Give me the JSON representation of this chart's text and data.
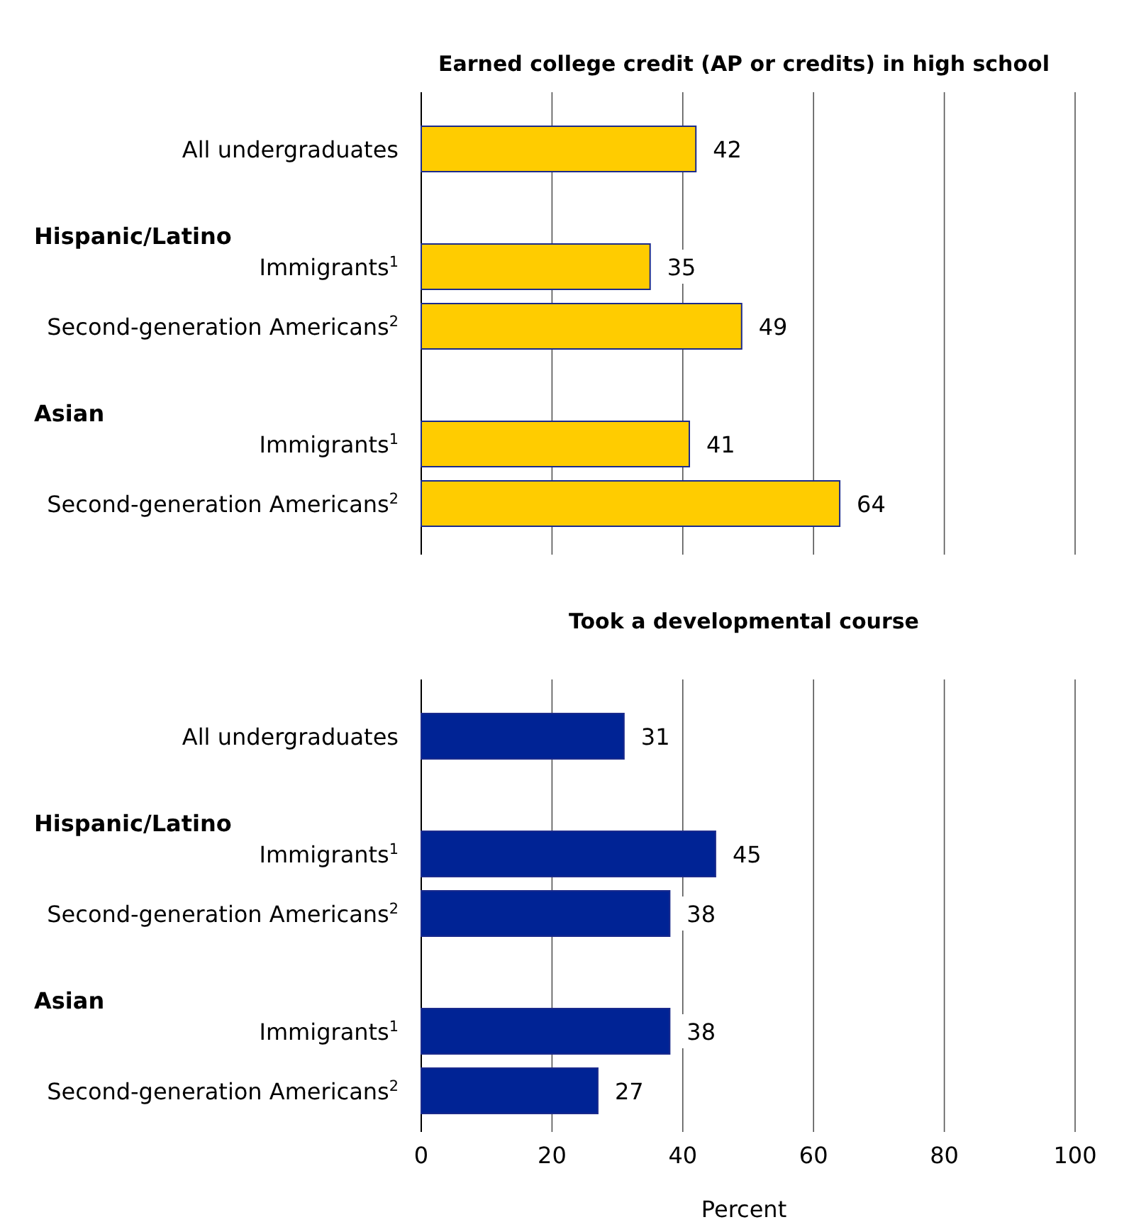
{
  "chart_data": [
    {
      "type": "bar",
      "orientation": "horizontal",
      "title": "Earned college credit (AP or credits) in high school",
      "annotations": [
        "Hispanic/Latino",
        "Asian"
      ],
      "categories": [
        "All undergraduates",
        "Immigrants$^{1}$",
        "Second-generation Americans$^{2}$",
        "Immigrants$^{1}$",
        "Second-generation Americans$^{2}$"
      ],
      "values": [
        42,
        35,
        49,
        41,
        64
      ],
      "color": "#ffcc00",
      "xlim": [
        0,
        100
      ],
      "xticks": [
        0,
        20,
        40,
        60,
        80,
        100
      ],
      "grid": "x",
      "data_labels": true,
      "tick_labels": "y"
    },
    {
      "type": "bar",
      "orientation": "horizontal",
      "title": "Took a developmental course",
      "xlabel": "Percent",
      "annotations": [
        "Hispanic/Latino",
        "Asian"
      ],
      "categories": [
        "All undergraduates",
        "Immigrants$^{1}$",
        "Second-generation Americans$^{2}$",
        "Immigrants$^{1}$",
        "Second-generation Americans$^{2}$"
      ],
      "values": [
        31,
        45,
        38,
        38,
        27
      ],
      "color": "#002395",
      "xlim": [
        0,
        100
      ],
      "xticks": [
        0,
        20,
        40,
        60,
        80,
        100
      ],
      "grid": "x",
      "data_labels": true
    }
  ]
}
